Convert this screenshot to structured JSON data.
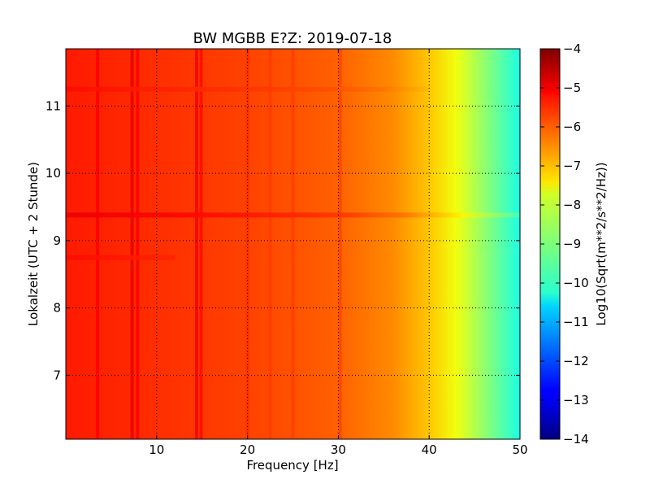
{
  "chart_data": {
    "type": "heatmap",
    "title": "BW MGBB E?Z: 2019-07-18",
    "xlabel": "Frequency [Hz]",
    "ylabel": "Lokalzeit (UTC + 2 Stunde)",
    "xlim": [
      0,
      50
    ],
    "ylim": [
      11.85,
      6.05
    ],
    "x_ticks": [
      {
        "value": 10,
        "label": "10"
      },
      {
        "value": 20,
        "label": "20"
      },
      {
        "value": 30,
        "label": "30"
      },
      {
        "value": 40,
        "label": "40"
      },
      {
        "value": 50,
        "label": "50"
      }
    ],
    "y_ticks": [
      {
        "value": 7,
        "label": "7"
      },
      {
        "value": 8,
        "label": "8"
      },
      {
        "value": 9,
        "label": "9"
      },
      {
        "value": 10,
        "label": "10"
      },
      {
        "value": 11,
        "label": "11"
      }
    ],
    "grid": true,
    "colorbar": {
      "label": "Log10(Sqrt(m**2/s**2/Hz))",
      "range": [
        -14,
        -4
      ],
      "ticks": [
        {
          "value": -4,
          "label": "−4"
        },
        {
          "value": -5,
          "label": "−5"
        },
        {
          "value": -6,
          "label": "−6"
        },
        {
          "value": -7,
          "label": "−7"
        },
        {
          "value": -8,
          "label": "−8"
        },
        {
          "value": -9,
          "label": "−9"
        },
        {
          "value": -10,
          "label": "−10"
        },
        {
          "value": -11,
          "label": "−11"
        },
        {
          "value": -12,
          "label": "−12"
        },
        {
          "value": -13,
          "label": "−13"
        },
        {
          "value": -14,
          "label": "−14"
        }
      ],
      "colormap": "jet"
    },
    "spectral_profile": [
      {
        "frequency": 0,
        "value": -5.5
      },
      {
        "frequency": 10,
        "value": -5.7
      },
      {
        "frequency": 20,
        "value": -5.9
      },
      {
        "frequency": 30,
        "value": -6.2
      },
      {
        "frequency": 36,
        "value": -6.6
      },
      {
        "frequency": 40,
        "value": -7.2
      },
      {
        "frequency": 43,
        "value": -7.9
      },
      {
        "frequency": 46,
        "value": -8.8
      },
      {
        "frequency": 49,
        "value": -9.7
      },
      {
        "frequency": 50,
        "value": -10.0
      }
    ],
    "vertical_features": [
      {
        "frequency": 3.5,
        "delta": 0.35
      },
      {
        "frequency": 7.3,
        "delta": 0.6
      },
      {
        "frequency": 7.9,
        "delta": 0.45
      },
      {
        "frequency": 14.4,
        "delta": 0.6
      },
      {
        "frequency": 14.9,
        "delta": 0.45
      },
      {
        "frequency": 20.0,
        "delta": 0.2
      },
      {
        "frequency": 22.5,
        "delta": 0.15
      },
      {
        "frequency": 25.0,
        "delta": 0.2
      },
      {
        "frequency": 30.2,
        "delta": 0.3
      }
    ],
    "horizontal_features": [
      {
        "time": 9.38,
        "delta": 0.45,
        "fmax": 50
      },
      {
        "time": 8.75,
        "delta": 0.15,
        "fmax": 12
      },
      {
        "time": 11.25,
        "delta": 0.15,
        "fmax": 40
      }
    ]
  }
}
